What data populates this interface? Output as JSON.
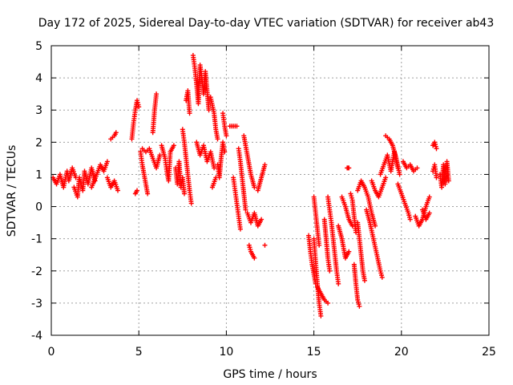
{
  "chart_data": {
    "type": "scatter",
    "title": "Day 172 of 2025, Sidereal Day-to-day VTEC variation (SDTVAR) for receiver ab43",
    "xlabel": "GPS time / hours",
    "ylabel": "SDTVAR / TECUs",
    "xlim": [
      0,
      25
    ],
    "ylim": [
      -4,
      5
    ],
    "xticks": [
      "0",
      "5",
      "10",
      "15",
      "20",
      "25"
    ],
    "yticks": [
      "-4",
      "-3",
      "-2",
      "-1",
      "0",
      "1",
      "2",
      "3",
      "4",
      "5"
    ],
    "grid": true,
    "marker": "+",
    "series": [
      {
        "name": "SDTVAR",
        "color": "#ff0000",
        "segments": [
          [
            [
              0.1,
              0.9
            ],
            [
              0.3,
              0.7
            ],
            [
              0.5,
              1.0
            ],
            [
              0.7,
              0.6
            ],
            [
              0.9,
              1.1
            ],
            [
              1.0,
              0.8
            ],
            [
              1.2,
              1.2
            ],
            [
              1.4,
              0.9
            ]
          ],
          [
            [
              1.3,
              0.6
            ],
            [
              1.5,
              0.3
            ],
            [
              1.6,
              0.9
            ],
            [
              1.8,
              0.5
            ],
            [
              1.9,
              1.1
            ],
            [
              2.1,
              0.7
            ],
            [
              2.3,
              1.2
            ],
            [
              2.5,
              0.8
            ]
          ],
          [
            [
              2.3,
              0.6
            ],
            [
              2.6,
              1.0
            ],
            [
              2.8,
              1.3
            ],
            [
              3.0,
              1.1
            ],
            [
              3.2,
              1.4
            ]
          ],
          [
            [
              3.2,
              0.9
            ],
            [
              3.4,
              0.6
            ],
            [
              3.6,
              0.8
            ],
            [
              3.8,
              0.5
            ]
          ],
          [
            [
              3.4,
              2.1
            ],
            [
              3.6,
              2.2
            ],
            [
              3.7,
              2.3
            ]
          ],
          [
            [
              4.6,
              2.1
            ],
            [
              4.7,
              2.6
            ],
            [
              4.8,
              3.0
            ],
            [
              4.9,
              3.3
            ],
            [
              5.0,
              3.1
            ]
          ],
          [
            [
              4.8,
              0.4
            ],
            [
              4.9,
              0.5
            ]
          ],
          [
            [
              5.1,
              1.7
            ],
            [
              5.2,
              1.3
            ],
            [
              5.3,
              1.0
            ],
            [
              5.4,
              0.7
            ],
            [
              5.5,
              0.4
            ]
          ],
          [
            [
              5.2,
              1.8
            ],
            [
              5.4,
              1.7
            ],
            [
              5.6,
              1.8
            ],
            [
              5.8,
              1.5
            ],
            [
              6.0,
              1.2
            ],
            [
              6.2,
              1.6
            ]
          ],
          [
            [
              5.8,
              2.3
            ],
            [
              5.9,
              3.0
            ],
            [
              6.0,
              3.5
            ]
          ],
          [
            [
              6.3,
              1.9
            ],
            [
              6.5,
              1.5
            ],
            [
              6.6,
              1.1
            ],
            [
              6.7,
              0.8
            ],
            [
              6.8,
              1.7
            ],
            [
              7.0,
              1.9
            ]
          ],
          [
            [
              7.1,
              1.2
            ],
            [
              7.2,
              0.7
            ],
            [
              7.3,
              1.4
            ],
            [
              7.4,
              0.6
            ],
            [
              7.5,
              0.9
            ],
            [
              7.6,
              0.4
            ]
          ],
          [
            [
              7.5,
              2.4
            ],
            [
              7.6,
              2.0
            ],
            [
              7.7,
              1.5
            ],
            [
              7.8,
              1.0
            ],
            [
              7.9,
              0.5
            ],
            [
              8.0,
              0.1
            ]
          ],
          [
            [
              7.7,
              3.3
            ],
            [
              7.8,
              3.6
            ],
            [
              7.9,
              2.9
            ]
          ],
          [
            [
              8.1,
              4.7
            ],
            [
              8.2,
              4.3
            ],
            [
              8.3,
              3.8
            ],
            [
              8.4,
              3.2
            ],
            [
              8.5,
              4.4
            ],
            [
              8.6,
              4.0
            ],
            [
              8.7,
              3.5
            ],
            [
              8.8,
              4.2
            ],
            [
              8.9,
              3.6
            ],
            [
              9.0,
              3.0
            ]
          ],
          [
            [
              8.3,
              2.0
            ],
            [
              8.5,
              1.6
            ],
            [
              8.7,
              1.9
            ],
            [
              8.9,
              1.4
            ],
            [
              9.1,
              1.7
            ],
            [
              9.3,
              1.2
            ]
          ],
          [
            [
              9.1,
              3.4
            ],
            [
              9.3,
              2.9
            ],
            [
              9.4,
              2.4
            ],
            [
              9.5,
              2.1
            ]
          ],
          [
            [
              9.2,
              0.6
            ],
            [
              9.4,
              0.9
            ]
          ],
          [
            [
              9.5,
              1.3
            ],
            [
              9.6,
              0.9
            ],
            [
              9.7,
              1.5
            ],
            [
              9.8,
              2.0
            ],
            [
              9.9,
              1.7
            ]
          ],
          [
            [
              9.8,
              2.9
            ],
            [
              9.9,
              2.5
            ],
            [
              10.0,
              2.2
            ]
          ],
          [
            [
              10.2,
              2.5
            ],
            [
              10.4,
              2.5
            ],
            [
              10.6,
              2.5
            ]
          ],
          [
            [
              10.4,
              0.9
            ],
            [
              10.5,
              0.5
            ],
            [
              10.6,
              0.1
            ],
            [
              10.7,
              -0.3
            ],
            [
              10.8,
              -0.7
            ]
          ],
          [
            [
              10.7,
              1.8
            ],
            [
              10.8,
              1.4
            ],
            [
              10.9,
              0.9
            ],
            [
              11.0,
              0.4
            ],
            [
              11.1,
              -0.1
            ]
          ],
          [
            [
              11.0,
              2.2
            ],
            [
              11.2,
              1.6
            ],
            [
              11.4,
              1.0
            ],
            [
              11.6,
              0.6
            ]
          ],
          [
            [
              11.2,
              -0.2
            ],
            [
              11.4,
              -0.5
            ],
            [
              11.6,
              -0.2
            ],
            [
              11.8,
              -0.6
            ],
            [
              12.0,
              -0.4
            ]
          ],
          [
            [
              11.3,
              -1.2
            ],
            [
              11.4,
              -1.4
            ],
            [
              11.6,
              -1.6
            ]
          ],
          [
            [
              11.8,
              0.5
            ],
            [
              12.0,
              0.9
            ],
            [
              12.2,
              1.3
            ]
          ],
          [
            [
              12.2,
              -1.2
            ]
          ],
          [
            [
              14.7,
              -0.9
            ],
            [
              14.8,
              -1.4
            ],
            [
              14.9,
              -1.8
            ],
            [
              15.0,
              -2.1
            ],
            [
              15.1,
              -2.4
            ]
          ],
          [
            [
              15.0,
              -1.0
            ],
            [
              15.1,
              -1.7
            ],
            [
              15.2,
              -2.4
            ],
            [
              15.3,
              -3.0
            ],
            [
              15.4,
              -3.4
            ]
          ],
          [
            [
              15.0,
              0.3
            ],
            [
              15.1,
              -0.2
            ],
            [
              15.2,
              -0.7
            ],
            [
              15.3,
              -1.2
            ]
          ],
          [
            [
              15.2,
              -2.5
            ],
            [
              15.4,
              -2.7
            ],
            [
              15.6,
              -2.9
            ],
            [
              15.8,
              -3.0
            ]
          ],
          [
            [
              15.6,
              -0.4
            ],
            [
              15.7,
              -1.0
            ],
            [
              15.8,
              -1.6
            ],
            [
              15.9,
              -2.0
            ]
          ],
          [
            [
              15.8,
              0.3
            ],
            [
              15.9,
              -0.1
            ],
            [
              16.0,
              -0.5
            ],
            [
              16.1,
              -1.0
            ],
            [
              16.2,
              -1.5
            ],
            [
              16.3,
              -2.0
            ],
            [
              16.4,
              -2.4
            ]
          ],
          [
            [
              16.4,
              -0.6
            ],
            [
              16.6,
              -1.0
            ],
            [
              16.8,
              -1.6
            ],
            [
              17.0,
              -1.4
            ]
          ],
          [
            [
              16.6,
              0.3
            ],
            [
              16.8,
              0.0
            ],
            [
              17.0,
              -0.4
            ],
            [
              17.2,
              -0.6
            ]
          ],
          [
            [
              17.1,
              0.4
            ],
            [
              17.2,
              0.2
            ],
            [
              17.3,
              -0.3
            ],
            [
              17.4,
              -0.8
            ]
          ],
          [
            [
              16.9,
              1.2
            ],
            [
              17.0,
              1.2
            ]
          ],
          [
            [
              17.3,
              -1.8
            ],
            [
              17.4,
              -2.4
            ],
            [
              17.5,
              -2.9
            ],
            [
              17.6,
              -3.1
            ]
          ],
          [
            [
              17.5,
              -0.5
            ],
            [
              17.6,
              -1.0
            ],
            [
              17.7,
              -1.5
            ],
            [
              17.8,
              -2.0
            ],
            [
              17.9,
              -2.3
            ]
          ],
          [
            [
              17.5,
              0.5
            ],
            [
              17.7,
              0.8
            ],
            [
              17.9,
              0.6
            ],
            [
              18.1,
              0.3
            ],
            [
              18.3,
              -0.2
            ],
            [
              18.5,
              -0.6
            ]
          ],
          [
            [
              18.0,
              -0.1
            ],
            [
              18.2,
              -0.5
            ],
            [
              18.4,
              -1.0
            ],
            [
              18.6,
              -1.5
            ],
            [
              18.8,
              -2.0
            ],
            [
              18.9,
              -2.2
            ]
          ],
          [
            [
              18.3,
              0.8
            ],
            [
              18.5,
              0.5
            ],
            [
              18.7,
              0.3
            ],
            [
              18.9,
              0.6
            ],
            [
              19.1,
              0.9
            ]
          ],
          [
            [
              18.8,
              1.0
            ],
            [
              19.0,
              1.3
            ],
            [
              19.2,
              1.6
            ],
            [
              19.4,
              1.1
            ],
            [
              19.6,
              1.7
            ],
            [
              19.8,
              1.2
            ]
          ],
          [
            [
              19.1,
              2.2
            ],
            [
              19.3,
              2.1
            ],
            [
              19.5,
              1.9
            ],
            [
              19.7,
              1.5
            ],
            [
              19.9,
              1.0
            ]
          ],
          [
            [
              19.8,
              0.7
            ],
            [
              20.0,
              0.4
            ],
            [
              20.2,
              0.1
            ],
            [
              20.4,
              -0.2
            ],
            [
              20.5,
              -0.4
            ]
          ],
          [
            [
              20.1,
              1.4
            ],
            [
              20.3,
              1.2
            ],
            [
              20.5,
              1.3
            ],
            [
              20.7,
              1.1
            ],
            [
              20.9,
              1.2
            ]
          ],
          [
            [
              20.8,
              -0.3
            ],
            [
              21.0,
              -0.6
            ],
            [
              21.2,
              -0.4
            ],
            [
              21.4,
              0.0
            ],
            [
              21.6,
              0.3
            ]
          ],
          [
            [
              21.2,
              -0.1
            ],
            [
              21.4,
              -0.4
            ],
            [
              21.6,
              -0.2
            ]
          ],
          [
            [
              21.8,
              1.9
            ],
            [
              21.9,
              2.0
            ],
            [
              22.0,
              1.8
            ]
          ],
          [
            [
              21.8,
              1.1
            ],
            [
              21.9,
              1.3
            ],
            [
              22.0,
              0.9
            ]
          ],
          [
            [
              22.2,
              1.0
            ],
            [
              22.3,
              0.6
            ],
            [
              22.4,
              1.3
            ],
            [
              22.5,
              0.7
            ],
            [
              22.6,
              1.4
            ],
            [
              22.7,
              0.8
            ]
          ]
        ]
      }
    ]
  }
}
